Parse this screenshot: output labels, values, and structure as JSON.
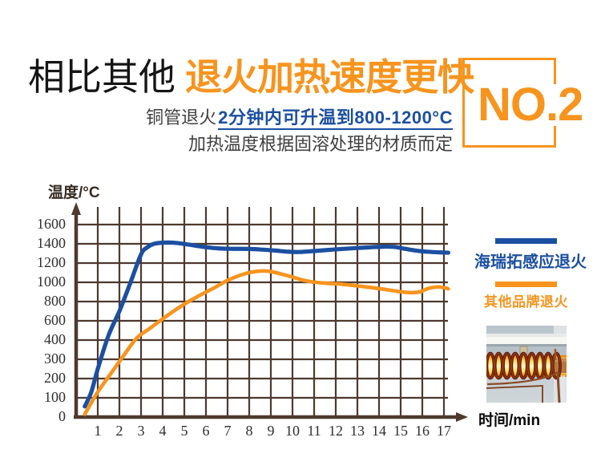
{
  "header": {
    "title_black": "相比其他",
    "title_orange": "退火加热速度更快",
    "badge_label": "NO.2",
    "subtitle_prefix": "铜管退火",
    "subtitle_highlight": "2分钟内可升温到800-1200°C",
    "subtitle_line2": "加热温度根据固溶处理的材质而定"
  },
  "colors": {
    "accent_orange": "#F7941E",
    "accent_blue": "#1C4FA1",
    "grid_brown": "#4E392E",
    "text_dark": "#3F3F3F"
  },
  "chart_data": {
    "type": "line",
    "title": "",
    "ylabel": "温度/°C",
    "xlabel": "时间/min",
    "grid": true,
    "legend_position": "right",
    "y_ticks": [
      0,
      100,
      200,
      300,
      400,
      600,
      800,
      1000,
      1200,
      1400,
      1600
    ],
    "x_ticks": [
      1,
      2,
      3,
      4,
      5,
      6,
      7,
      8,
      9,
      10,
      11,
      12,
      13,
      14,
      15,
      16,
      17
    ],
    "x_range": [
      0,
      17.5
    ],
    "series": [
      {
        "name": "海瑞拓感应退火",
        "color": "#1C4FA1",
        "points": [
          [
            0.4,
            55
          ],
          [
            0.7,
            130
          ],
          [
            1,
            250
          ],
          [
            1.5,
            450
          ],
          [
            2,
            700
          ],
          [
            2.5,
            990
          ],
          [
            3,
            1290
          ],
          [
            3.3,
            1365
          ],
          [
            3.6,
            1400
          ],
          [
            4,
            1412
          ],
          [
            4.4,
            1413
          ],
          [
            4.8,
            1405
          ],
          [
            5.4,
            1385
          ],
          [
            6,
            1365
          ],
          [
            6.6,
            1352
          ],
          [
            7.2,
            1348
          ],
          [
            8,
            1347
          ],
          [
            8.6,
            1340
          ],
          [
            9.2,
            1330
          ],
          [
            9.8,
            1318
          ],
          [
            10.3,
            1315
          ],
          [
            11,
            1325
          ],
          [
            12,
            1342
          ],
          [
            13,
            1357
          ],
          [
            13.6,
            1364
          ],
          [
            14.2,
            1370
          ],
          [
            14.7,
            1368
          ],
          [
            15.2,
            1348
          ],
          [
            15.7,
            1330
          ],
          [
            16.2,
            1318
          ],
          [
            16.7,
            1312
          ],
          [
            17.2,
            1308
          ]
        ]
      },
      {
        "name": "其他品牌退火",
        "color": "#F7941E",
        "points": [
          [
            0.4,
            15
          ],
          [
            1,
            130
          ],
          [
            1.6,
            225
          ],
          [
            2.2,
            320
          ],
          [
            2.8,
            420
          ],
          [
            3.4,
            520
          ],
          [
            4,
            620
          ],
          [
            4.6,
            715
          ],
          [
            5.2,
            800
          ],
          [
            5.8,
            875
          ],
          [
            6.4,
            945
          ],
          [
            7,
            1020
          ],
          [
            7.6,
            1075
          ],
          [
            8.1,
            1105
          ],
          [
            8.6,
            1118
          ],
          [
            9,
            1112
          ],
          [
            9.5,
            1085
          ],
          [
            10,
            1055
          ],
          [
            10.5,
            1022
          ],
          [
            11,
            1002
          ],
          [
            11.6,
            990
          ],
          [
            12.2,
            982
          ],
          [
            12.8,
            968
          ],
          [
            13.4,
            952
          ],
          [
            14,
            935
          ],
          [
            14.6,
            915
          ],
          [
            15.1,
            900
          ],
          [
            15.5,
            892
          ],
          [
            15.9,
            902
          ],
          [
            16.3,
            938
          ],
          [
            16.7,
            952
          ],
          [
            17,
            945
          ],
          [
            17.2,
            932
          ]
        ]
      }
    ]
  }
}
